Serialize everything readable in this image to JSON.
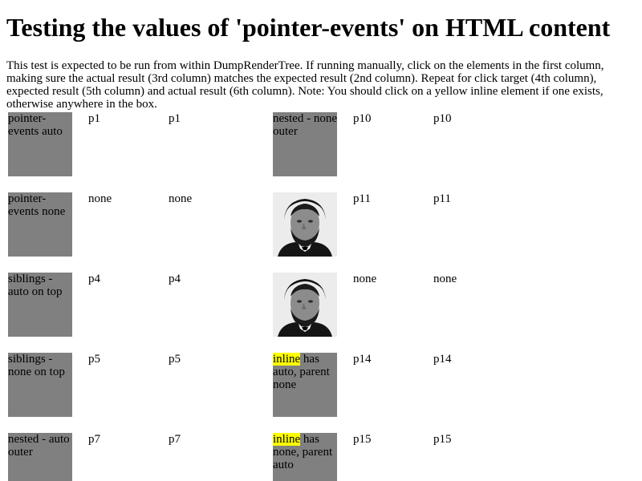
{
  "title": "Testing the values of 'pointer-events' on HTML content",
  "intro": "This test is expected to be run from within DumpRenderTree. If running manually, click on the elements in the first column, making sure the actual result (3rd column) matches the expected result (2nd column). Repeat for click target (4th column), expected result (5th column) and actual result (6th column). Note: You should click on a yellow inline element if one exists, otherwise anywhere in the box.",
  "left_rows": [
    {
      "box": "pointer-events auto",
      "expected": "p1",
      "actual": "p1"
    },
    {
      "box": "pointer-events none",
      "expected": "none",
      "actual": "none"
    },
    {
      "box": "siblings - auto on top",
      "expected": "p4",
      "actual": "p4"
    },
    {
      "box": "siblings - none on top",
      "expected": "p5",
      "actual": "p5"
    },
    {
      "box": "nested - auto outer",
      "expected": "p7",
      "actual": "p7"
    }
  ],
  "right_rows": [
    {
      "box": "nested - none outer",
      "expected": "p10",
      "actual": "p10"
    },
    {
      "box": "",
      "expected": "p11",
      "actual": "p11"
    },
    {
      "box": "",
      "expected": "none",
      "actual": "none"
    },
    {
      "inline": "inline",
      "rest": " has auto, parent none",
      "expected": "p14",
      "actual": "p14"
    },
    {
      "inline": "inline",
      "rest": " has none, parent auto",
      "expected": "p15",
      "actual": "p15"
    }
  ],
  "colors": {
    "box": "#808080",
    "inline_highlight": "#ffff00"
  }
}
